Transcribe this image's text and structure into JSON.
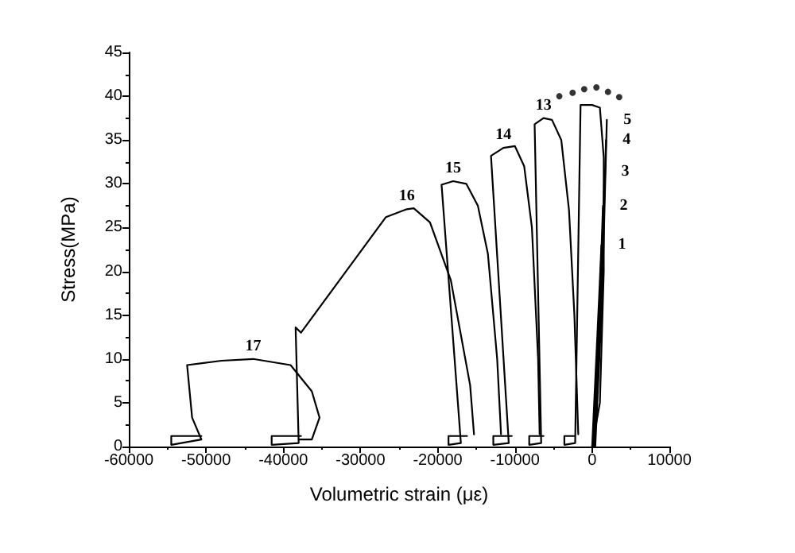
{
  "chart_data": {
    "type": "line",
    "xlabel": "Volumetric strain (με)",
    "ylabel": "Stress(MPa)",
    "xlim": [
      -60000,
      10000
    ],
    "xticks": [
      -60000,
      -50000,
      -40000,
      -30000,
      -20000,
      -10000,
      0,
      10000
    ],
    "ylim": [
      0,
      45
    ],
    "yticks": [
      0,
      5,
      10,
      15,
      20,
      25,
      30,
      35,
      40,
      45
    ],
    "marker": "none",
    "line_style": "solid",
    "series": [
      {
        "color": "#000000",
        "x": [
          0,
          900,
          1200
        ],
        "values": [
          0,
          17,
          23
        ]
      },
      {
        "color": "#000000",
        "x": [
          100,
          1000,
          1400
        ],
        "values": [
          0,
          17,
          27.5
        ]
      },
      {
        "color": "#000000",
        "x": [
          200,
          1100,
          1600
        ],
        "values": [
          0,
          17,
          31.4
        ]
      },
      {
        "color": "#000000",
        "x": [
          300,
          1200,
          1800
        ],
        "values": [
          0,
          17,
          35
        ]
      },
      {
        "color": "#000000",
        "x": [
          400,
          1300,
          1900
        ],
        "values": [
          0,
          17,
          37.3
        ]
      },
      {
        "color": "#000000",
        "x": [
          -2200,
          -3600,
          -3600,
          -2200,
          -1500,
          0,
          1000,
          1500,
          1500,
          1000,
          0
        ],
        "values": [
          1.2,
          1.2,
          0.2,
          0.4,
          39,
          39,
          38.7,
          33,
          20,
          5,
          0
        ]
      },
      {
        "color": "#000000",
        "x": [
          -6300,
          -8150,
          -8150,
          -6600,
          -7450,
          -6300,
          -5200,
          -4000,
          -3000,
          -2300,
          -1800
        ],
        "values": [
          1.2,
          1.2,
          0.2,
          0.4,
          36.8,
          37.5,
          37.3,
          35,
          27,
          15,
          1.4
        ]
      },
      {
        "color": "#000000",
        "x": [
          -10400,
          -12800,
          -12800,
          -10800,
          -13100,
          -11500,
          -10000,
          -8800,
          -7800,
          -7000,
          -6800
        ],
        "values": [
          1.2,
          1.2,
          0.2,
          0.4,
          33.2,
          34.1,
          34.3,
          32,
          25,
          10,
          1.4
        ]
      },
      {
        "color": "#000000",
        "x": [
          -16200,
          -18600,
          -18600,
          -17000,
          -19500,
          -18000,
          -16300,
          -14800,
          -13500,
          -12300,
          -11800
        ],
        "values": [
          1.2,
          1.2,
          0.2,
          0.4,
          29.9,
          30.3,
          30,
          27.5,
          22,
          10,
          1.4
        ]
      },
      {
        "color": "#000000",
        "x": [
          -37700,
          -41500,
          -41500,
          -38000,
          -38400,
          -37700,
          -26700,
          -24000,
          -23100,
          -21000,
          -18300,
          -15800,
          -15300
        ],
        "values": [
          1.2,
          1.2,
          0.2,
          0.4,
          13.6,
          13,
          26.2,
          27.1,
          27.2,
          25.6,
          19,
          7,
          1.4
        ]
      },
      {
        "color": "#000000",
        "x": [
          -50600,
          -54500,
          -54500,
          -50600,
          -51800,
          -52450,
          -48000,
          -43900,
          -39050,
          -36300,
          -35300,
          -36300,
          -38000
        ],
        "values": [
          1.2,
          1.2,
          0.2,
          0.8,
          3.3,
          9.3,
          9.8,
          10,
          9.3,
          6.3,
          3.3,
          0.8,
          0.8
        ]
      },
      {
        "type": "scatter",
        "marker": "circle",
        "color": "#000000",
        "x": [
          -4250,
          -2530,
          -1030,
          550,
          2050,
          3500
        ],
        "values": [
          40,
          40.4,
          40.8,
          41,
          40.5,
          39.9
        ]
      }
    ],
    "annotations": [
      {
        "text": "1",
        "x": 1200,
        "y": 23
      },
      {
        "text": "2",
        "x": 1400,
        "y": 27.5
      },
      {
        "text": "3",
        "x": 1600,
        "y": 31.4
      },
      {
        "text": "4",
        "x": 1800,
        "y": 35
      },
      {
        "text": "5",
        "x": 1900,
        "y": 37.3
      },
      {
        "text": "13",
        "x": -6300,
        "y": 37.5
      },
      {
        "text": "14",
        "x": -11500,
        "y": 34.1
      },
      {
        "text": "15",
        "x": -18000,
        "y": 30.3
      },
      {
        "text": "16",
        "x": -24000,
        "y": 27.1
      },
      {
        "text": "17",
        "x": -43900,
        "y": 10
      }
    ]
  }
}
